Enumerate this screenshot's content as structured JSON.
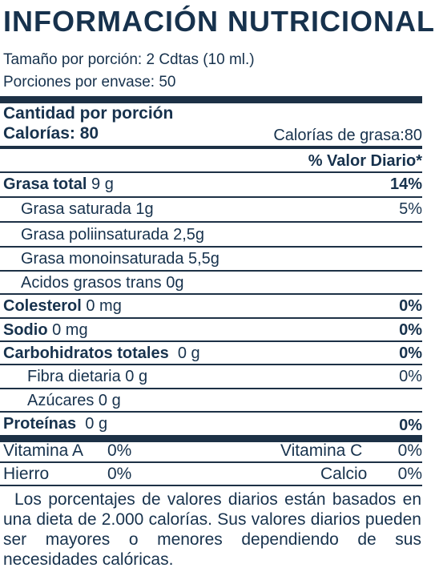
{
  "title": "INFORMACIÓN NUTRICIONAL",
  "serving_size": "Tamaño por porción: 2 Cdtas (10 ml.)",
  "servings_per_container": "Porciones por envase:  50",
  "amount_per_serving": "Cantidad por porción",
  "calories": "Calorías: 80",
  "calories_from_fat": "Calorías de grasa:80",
  "daily_value_header": "% Valor Diario*",
  "rows": [
    {
      "label": "Grasa total",
      "amount": " 9 g",
      "dv": "14%"
    },
    {
      "label": "Grasa saturada 1g",
      "amount": "",
      "dv": "5%"
    },
    {
      "label": "Grasa poliinsaturada 2,5g",
      "amount": "",
      "dv": ""
    },
    {
      "label": "Grasa monoinsaturada 5,5g",
      "amount": "",
      "dv": ""
    },
    {
      "label": "Acidos grasos trans 0g",
      "amount": "",
      "dv": ""
    },
    {
      "label": "Colesterol",
      "amount": " 0 mg",
      "dv": "0%"
    },
    {
      "label": "Sodio",
      "amount": " 0 mg",
      "dv": "0%"
    },
    {
      "label": "Carbohidratos totales",
      "amount": "  0 g",
      "dv": "0%"
    },
    {
      "label": "Fibra dietaria 0 g",
      "amount": "",
      "dv": "0%"
    },
    {
      "label": "Azúcares 0 g",
      "amount": "",
      "dv": ""
    },
    {
      "label": "Proteínas",
      "amount": "  0 g",
      "dv": "0%"
    }
  ],
  "vitamins": {
    "vitamin_a_label": "Vitamina A",
    "vitamin_a_value": "0%",
    "vitamin_c_label": "Vitamina C",
    "vitamin_c_value": "0%",
    "iron_label": "Hierro",
    "iron_value": "0%",
    "calcium_label": "Calcio",
    "calcium_value": "0%"
  },
  "footnote": "Los porcentajes de valores diarios están basados en una dieta de 2.000 calorías. Sus valores diarios pueden ser mayores o menores dependiendo de sus necesidades calóricas."
}
